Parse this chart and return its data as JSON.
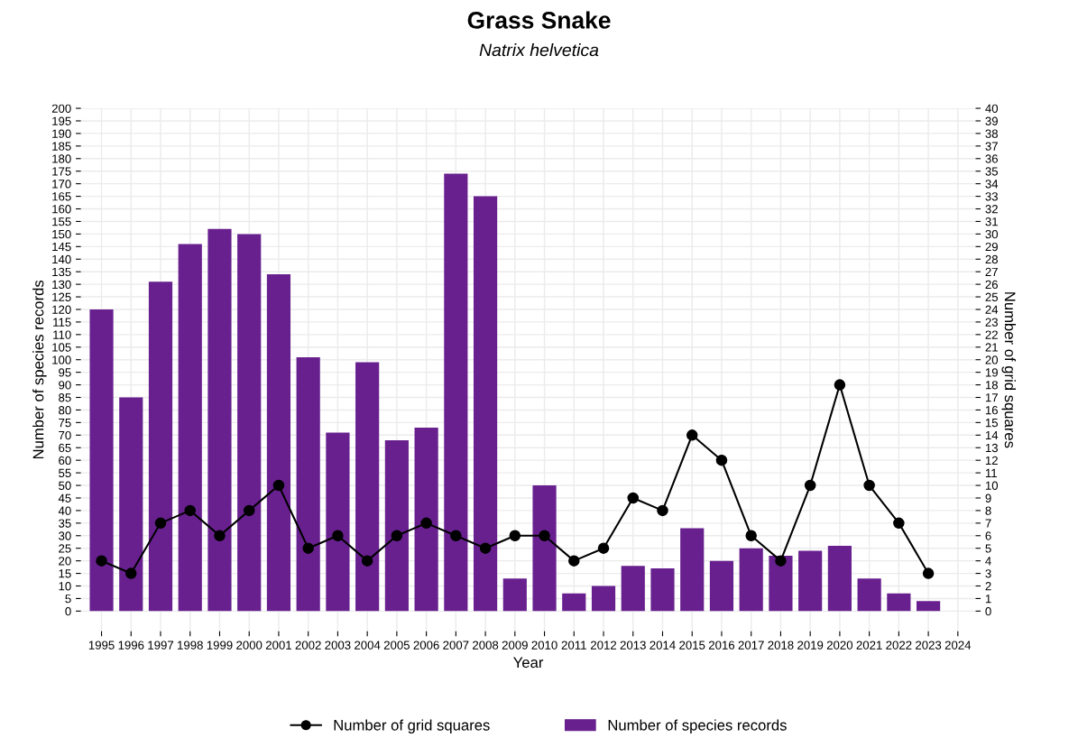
{
  "chart_data": {
    "type": "bar",
    "title": "Grass Snake",
    "subtitle": "Natrix helvetica",
    "xlabel": "Year",
    "ylabel": "Number of species records",
    "y2label": "Number of grid squares",
    "x": [
      1995,
      1996,
      1997,
      1998,
      1999,
      2000,
      2001,
      2002,
      2003,
      2004,
      2005,
      2006,
      2007,
      2008,
      2009,
      2010,
      2011,
      2012,
      2013,
      2014,
      2015,
      2016,
      2017,
      2018,
      2019,
      2020,
      2021,
      2022,
      2023
    ],
    "series": [
      {
        "name": "Number of species records",
        "color": "#68208f",
        "values": [
          120,
          85,
          131,
          146,
          152,
          150,
          134,
          101,
          71,
          99,
          68,
          73,
          174,
          165,
          13,
          50,
          7,
          10,
          18,
          17,
          33,
          20,
          25,
          22,
          24,
          26,
          13,
          7,
          4
        ]
      },
      {
        "name": "Number of grid squares",
        "type": "line",
        "axis": "y2",
        "color": "#000000",
        "values": [
          4,
          3,
          7,
          8,
          6,
          8,
          10,
          5,
          6,
          4,
          6,
          7,
          6,
          5,
          6,
          6,
          4,
          5,
          9,
          8,
          14,
          12,
          6,
          4,
          10,
          18,
          10,
          7,
          3
        ]
      }
    ],
    "xlim": [
      1994.3,
      2024.6
    ],
    "xticks": [
      1995,
      1996,
      1997,
      1998,
      1999,
      2000,
      2001,
      2002,
      2003,
      2004,
      2005,
      2006,
      2007,
      2008,
      2009,
      2010,
      2011,
      2012,
      2013,
      2014,
      2015,
      2016,
      2017,
      2018,
      2019,
      2020,
      2021,
      2022,
      2023,
      2024
    ],
    "ylim": [
      -8,
      200
    ],
    "yticks": [
      0,
      5,
      10,
      15,
      20,
      25,
      30,
      35,
      40,
      45,
      50,
      55,
      60,
      65,
      70,
      75,
      80,
      85,
      90,
      95,
      100,
      105,
      110,
      115,
      120,
      125,
      130,
      135,
      140,
      145,
      150,
      155,
      160,
      165,
      170,
      175,
      180,
      185,
      190,
      195,
      200
    ],
    "y2lim": [
      -1.6,
      40
    ],
    "y2ticks": [
      0,
      1,
      2,
      3,
      4,
      5,
      6,
      7,
      8,
      9,
      10,
      11,
      12,
      13,
      14,
      15,
      16,
      17,
      18,
      19,
      20,
      21,
      22,
      23,
      24,
      25,
      26,
      27,
      28,
      29,
      30,
      31,
      32,
      33,
      34,
      35,
      36,
      37,
      38,
      39,
      40
    ],
    "grid": true,
    "legend": "bottom",
    "marker": "circle",
    "line_style": "solid"
  }
}
